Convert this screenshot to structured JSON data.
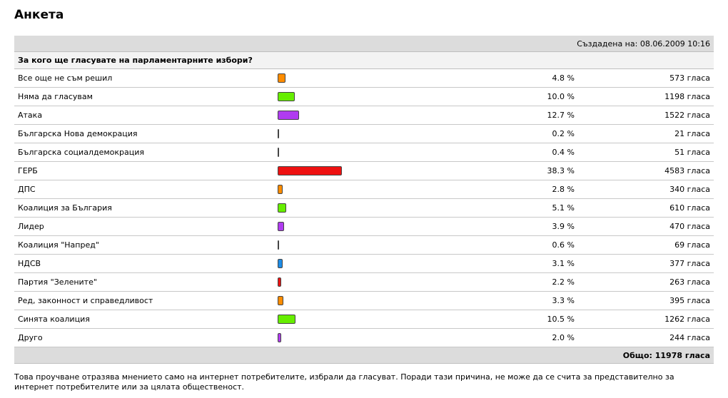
{
  "page_title": "Анкета",
  "created": "Създадена на: 08.06.2009 10:16",
  "question": "За кого ще гласувате на парламентарните избори?",
  "options": [
    {
      "label": "Все още не съм решил",
      "percent_text": "4.8 %",
      "percent": 4.8,
      "votes_text": "573 гласа",
      "color": "#ff8c00"
    },
    {
      "label": "Няма да гласувам",
      "percent_text": "10.0 %",
      "percent": 10.0,
      "votes_text": "1198 гласа",
      "color": "#66ee00"
    },
    {
      "label": "Атака",
      "percent_text": "12.7 %",
      "percent": 12.7,
      "votes_text": "1522 гласа",
      "color": "#b03cf0"
    },
    {
      "label": "Българска Нова демокрация",
      "percent_text": "0.2 %",
      "percent": 0.2,
      "votes_text": "21 гласа",
      "color": "#ff8c00"
    },
    {
      "label": "Българска социалдемокрация",
      "percent_text": "0.4 %",
      "percent": 0.4,
      "votes_text": "51 гласа",
      "color": "#1e8ce6"
    },
    {
      "label": "ГЕРБ",
      "percent_text": "38.3 %",
      "percent": 38.3,
      "votes_text": "4583 гласа",
      "color": "#ee1111"
    },
    {
      "label": "ДПС",
      "percent_text": "2.8 %",
      "percent": 2.8,
      "votes_text": "340 гласа",
      "color": "#ff8c00"
    },
    {
      "label": "Коалиция за България",
      "percent_text": "5.1 %",
      "percent": 5.1,
      "votes_text": "610 гласа",
      "color": "#66ee00"
    },
    {
      "label": "Лидер",
      "percent_text": "3.9 %",
      "percent": 3.9,
      "votes_text": "470 гласа",
      "color": "#b03cf0"
    },
    {
      "label": "Коалиция \"Напред\"",
      "percent_text": "0.6 %",
      "percent": 0.6,
      "votes_text": "69 гласа",
      "color": "#ff8c00"
    },
    {
      "label": "НДСВ",
      "percent_text": "3.1 %",
      "percent": 3.1,
      "votes_text": "377 гласа",
      "color": "#1e8ce6"
    },
    {
      "label": "Партия \"Зелените\"",
      "percent_text": "2.2 %",
      "percent": 2.2,
      "votes_text": "263 гласа",
      "color": "#ee1111"
    },
    {
      "label": "Ред, законност и справедливост",
      "percent_text": "3.3 %",
      "percent": 3.3,
      "votes_text": "395 гласа",
      "color": "#ff8c00"
    },
    {
      "label": "Синята коалиция",
      "percent_text": "10.5 %",
      "percent": 10.5,
      "votes_text": "1262 гласа",
      "color": "#66ee00"
    },
    {
      "label": "Друго",
      "percent_text": "2.0 %",
      "percent": 2.0,
      "votes_text": "244 гласа",
      "color": "#b03cf0"
    }
  ],
  "total": "Общо: 11978 гласа",
  "note": "Това проучване отразява мнението само на интернет потребителите, избрали да гласуват. Поради тази причина, не може да се счита за представително за интернет потребителите или за цялата общественост."
}
